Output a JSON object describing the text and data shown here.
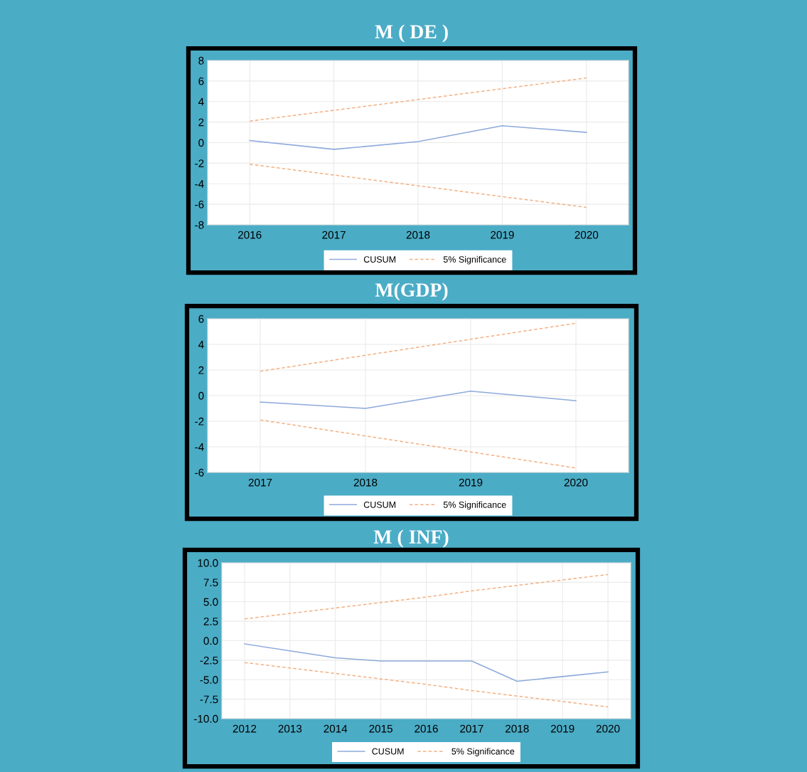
{
  "chart_data": [
    {
      "type": "line",
      "title": "M ( DE )",
      "categories": [
        "2016",
        "2017",
        "2018",
        "2019",
        "2020"
      ],
      "series": [
        {
          "name": "CUSUM",
          "color": "#8eaadb",
          "line_style": "solid",
          "values": [
            0.2,
            -0.65,
            0.1,
            1.65,
            1.0
          ]
        },
        {
          "name": "5% Significance",
          "color": "#f4b183",
          "line_style": "dashed",
          "values": [
            2.1,
            3.15,
            4.2,
            5.25,
            6.3
          ]
        },
        {
          "color": "#f4b183",
          "line_style": "dashed",
          "values": [
            -2.1,
            -3.15,
            -4.2,
            -5.25,
            -6.3
          ]
        }
      ],
      "ylim": [
        -8,
        8
      ],
      "yticks": [
        -8,
        -6,
        -4,
        -2,
        0,
        2,
        4,
        6,
        8
      ],
      "grid": true,
      "legend": "bottom"
    },
    {
      "type": "line",
      "title": "M(GDP)",
      "categories": [
        "2017",
        "2018",
        "2019",
        "2020"
      ],
      "series": [
        {
          "name": "CUSUM",
          "color": "#8eaadb",
          "line_style": "solid",
          "values": [
            -0.5,
            -1.0,
            0.35,
            -0.4
          ]
        },
        {
          "name": "5% Significance",
          "color": "#f4b183",
          "line_style": "dashed",
          "values": [
            1.9,
            3.15,
            4.4,
            5.65
          ]
        },
        {
          "color": "#f4b183",
          "line_style": "dashed",
          "values": [
            -1.9,
            -3.15,
            -4.4,
            -5.65
          ]
        }
      ],
      "ylim": [
        -6,
        6
      ],
      "yticks": [
        -6,
        -4,
        -2,
        0,
        2,
        4,
        6
      ],
      "grid": true,
      "legend": "bottom"
    },
    {
      "type": "line",
      "title": "M ( INF)",
      "categories": [
        "2012",
        "2013",
        "2014",
        "2015",
        "2016",
        "2017",
        "2018",
        "2019",
        "2020"
      ],
      "series": [
        {
          "name": "CUSUM",
          "color": "#8eaadb",
          "line_style": "solid",
          "values": [
            -0.4,
            -1.3,
            -2.2,
            -2.6,
            -2.6,
            -2.6,
            -5.2,
            -4.6,
            -4.0
          ]
        },
        {
          "name": "5% Significance",
          "color": "#f4b183",
          "line_style": "dashed",
          "values": [
            2.8,
            3.5,
            4.2,
            4.9,
            5.6,
            6.4,
            7.1,
            7.8,
            8.5
          ]
        },
        {
          "color": "#f4b183",
          "line_style": "dashed",
          "values": [
            -2.8,
            -3.5,
            -4.2,
            -4.9,
            -5.6,
            -6.4,
            -7.1,
            -7.8,
            -8.5
          ]
        }
      ],
      "ylim": [
        -10,
        10
      ],
      "yticks": [
        {
          "value": -10,
          "label": "-10.0"
        },
        {
          "value": -7.5,
          "label": "-7.5"
        },
        {
          "value": -5,
          "label": "-5.0"
        },
        {
          "value": -2.5,
          "label": "-2.5"
        },
        {
          "value": 0,
          "label": "0.0"
        },
        {
          "value": 2.5,
          "label": "2.5"
        },
        {
          "value": 5,
          "label": "5.0"
        },
        {
          "value": 7.5,
          "label": "7.5"
        },
        {
          "value": 10,
          "label": "10.0"
        }
      ],
      "grid": true,
      "legend": "bottom"
    }
  ]
}
